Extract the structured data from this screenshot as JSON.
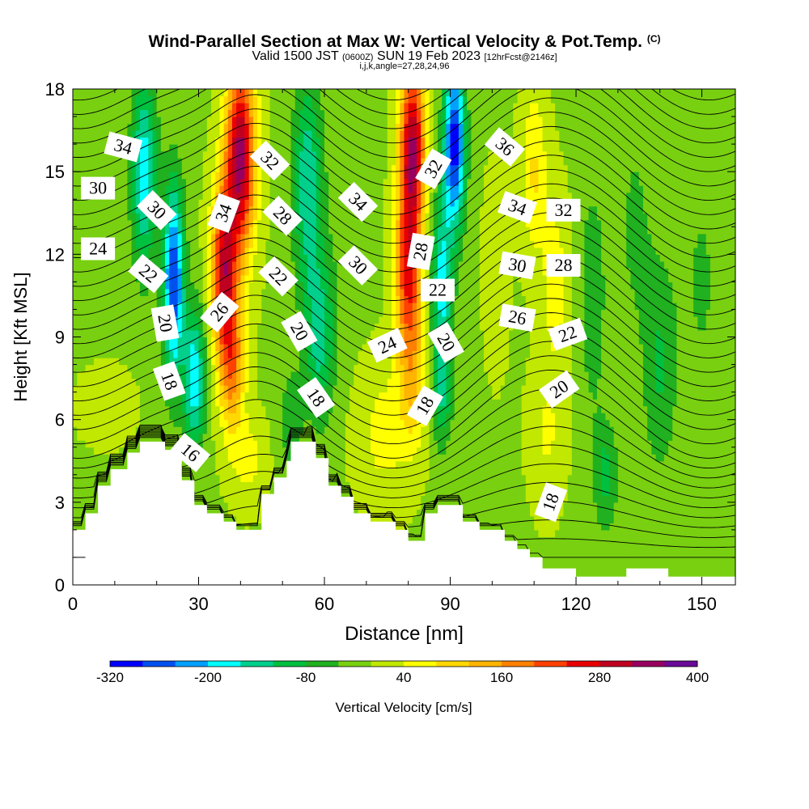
{
  "title": "Wind-Parallel Section at Max W: Vertical Velocity & Pot.Temp.",
  "title_mark": "(C)",
  "subtitle": {
    "part1": "Valid 1500 JST",
    "utc": "(0600Z)",
    "part2": "SUN 19 Feb 2023",
    "fcst": "[12hrFcst@2146z]"
  },
  "subtitle2": "i,j,k,angle=27,28,24,96",
  "chart_data": {
    "type": "heatmap",
    "xlabel": "Distance [nm]",
    "ylabel": "Height [Kft MSL]",
    "xlim": [
      0,
      158
    ],
    "ylim": [
      0,
      18
    ],
    "x_ticks": [
      0,
      30,
      60,
      90,
      120,
      150
    ],
    "y_ticks": [
      0,
      3,
      6,
      9,
      12,
      15,
      18
    ],
    "colorbar": {
      "label": "Vertical Velocity [cm/s]",
      "min": -320,
      "max": 400,
      "tick_labels": [
        -320,
        -200,
        -80,
        40,
        160,
        280,
        400
      ],
      "colors": [
        "#0000ff",
        "#0050f0",
        "#00a0ff",
        "#00ffff",
        "#00d08c",
        "#00c040",
        "#20b020",
        "#78d010",
        "#c0e800",
        "#ffff00",
        "#ffd800",
        "#ffb400",
        "#ff8000",
        "#ff4000",
        "#e80000",
        "#c00020",
        "#980060",
        "#6a0a98"
      ]
    },
    "terrain_kft": [
      {
        "x": 0,
        "h": 2.0
      },
      {
        "x": 3,
        "h": 2.0
      },
      {
        "x": 3,
        "h": 2.6
      },
      {
        "x": 6,
        "h": 2.6
      },
      {
        "x": 6,
        "h": 3.6
      },
      {
        "x": 9,
        "h": 3.6
      },
      {
        "x": 9,
        "h": 4.2
      },
      {
        "x": 13,
        "h": 4.2
      },
      {
        "x": 13,
        "h": 4.8
      },
      {
        "x": 16,
        "h": 4.8
      },
      {
        "x": 16,
        "h": 5.2
      },
      {
        "x": 22,
        "h": 5.2
      },
      {
        "x": 22,
        "h": 4.9
      },
      {
        "x": 26,
        "h": 4.9
      },
      {
        "x": 26,
        "h": 3.8
      },
      {
        "x": 29,
        "h": 3.8
      },
      {
        "x": 29,
        "h": 2.9
      },
      {
        "x": 32,
        "h": 2.9
      },
      {
        "x": 32,
        "h": 2.6
      },
      {
        "x": 36,
        "h": 2.6
      },
      {
        "x": 36,
        "h": 2.3
      },
      {
        "x": 39,
        "h": 2.3
      },
      {
        "x": 39,
        "h": 2.0
      },
      {
        "x": 45,
        "h": 2.0
      },
      {
        "x": 45,
        "h": 3.3
      },
      {
        "x": 48,
        "h": 3.3
      },
      {
        "x": 48,
        "h": 3.9
      },
      {
        "x": 51,
        "h": 3.9
      },
      {
        "x": 51,
        "h": 4.5
      },
      {
        "x": 52,
        "h": 4.5
      },
      {
        "x": 52,
        "h": 5.2
      },
      {
        "x": 58,
        "h": 5.2
      },
      {
        "x": 58,
        "h": 4.6
      },
      {
        "x": 61,
        "h": 4.6
      },
      {
        "x": 61,
        "h": 3.6
      },
      {
        "x": 64,
        "h": 3.6
      },
      {
        "x": 64,
        "h": 3.2
      },
      {
        "x": 67,
        "h": 3.2
      },
      {
        "x": 67,
        "h": 2.6
      },
      {
        "x": 71,
        "h": 2.6
      },
      {
        "x": 71,
        "h": 2.3
      },
      {
        "x": 77,
        "h": 2.3
      },
      {
        "x": 77,
        "h": 2.0
      },
      {
        "x": 80,
        "h": 2.0
      },
      {
        "x": 80,
        "h": 1.6
      },
      {
        "x": 84,
        "h": 1.6
      },
      {
        "x": 84,
        "h": 2.6
      },
      {
        "x": 87,
        "h": 2.6
      },
      {
        "x": 87,
        "h": 2.9
      },
      {
        "x": 93,
        "h": 2.9
      },
      {
        "x": 93,
        "h": 2.3
      },
      {
        "x": 97,
        "h": 2.3
      },
      {
        "x": 97,
        "h": 2.0
      },
      {
        "x": 103,
        "h": 2.0
      },
      {
        "x": 103,
        "h": 1.6
      },
      {
        "x": 106,
        "h": 1.6
      },
      {
        "x": 106,
        "h": 1.3
      },
      {
        "x": 109,
        "h": 1.3
      },
      {
        "x": 109,
        "h": 1.0
      },
      {
        "x": 112,
        "h": 1.0
      },
      {
        "x": 112,
        "h": 0.6
      },
      {
        "x": 120,
        "h": 0.6
      },
      {
        "x": 120,
        "h": 0.3
      },
      {
        "x": 132,
        "h": 0.3
      },
      {
        "x": 132,
        "h": 0.6
      },
      {
        "x": 142,
        "h": 0.6
      },
      {
        "x": 142,
        "h": 0.3
      },
      {
        "x": 158,
        "h": 0.3
      }
    ],
    "velocity_features": [
      {
        "x": 8,
        "h": 6.5,
        "w": 40,
        "sx": 6,
        "sh": 1.2
      },
      {
        "x": 17,
        "h": 15.0,
        "w": -180,
        "sx": 3,
        "sh": 3.5
      },
      {
        "x": 24,
        "h": 11.0,
        "w": -280,
        "sx": 2.5,
        "sh": 3.5
      },
      {
        "x": 29,
        "h": 7.5,
        "w": -190,
        "sx": 2.5,
        "sh": 2.5
      },
      {
        "x": 40,
        "h": 15.5,
        "w": 340,
        "sx": 3.5,
        "sh": 3.5
      },
      {
        "x": 36,
        "h": 11.5,
        "w": 280,
        "sx": 3,
        "sh": 3
      },
      {
        "x": 38,
        "h": 8.0,
        "w": 180,
        "sx": 3,
        "sh": 2.5
      },
      {
        "x": 42,
        "h": 4.5,
        "w": 60,
        "sx": 4,
        "sh": 1.5
      },
      {
        "x": 56,
        "h": 14.5,
        "w": -150,
        "sx": 3.5,
        "sh": 4
      },
      {
        "x": 59,
        "h": 9.0,
        "w": -130,
        "sx": 3.5,
        "sh": 3
      },
      {
        "x": 52,
        "h": 6.0,
        "w": -60,
        "sx": 3,
        "sh": 2
      },
      {
        "x": 65,
        "h": 13.5,
        "w": -20,
        "sx": 4,
        "sh": 4
      },
      {
        "x": 74,
        "h": 5.5,
        "w": 60,
        "sx": 6,
        "sh": 2.5
      },
      {
        "x": 81,
        "h": 16.0,
        "w": 320,
        "sx": 3,
        "sh": 3
      },
      {
        "x": 80,
        "h": 11.5,
        "w": 250,
        "sx": 3,
        "sh": 3
      },
      {
        "x": 81,
        "h": 7.5,
        "w": 110,
        "sx": 3.5,
        "sh": 2.5
      },
      {
        "x": 91,
        "h": 16.0,
        "w": -300,
        "sx": 2.5,
        "sh": 3
      },
      {
        "x": 88,
        "h": 11.0,
        "w": -170,
        "sx": 2.5,
        "sh": 3
      },
      {
        "x": 88,
        "h": 7.0,
        "w": -110,
        "sx": 2.5,
        "sh": 2
      },
      {
        "x": 101,
        "h": 11.5,
        "w": 30,
        "sx": 3,
        "sh": 3.5
      },
      {
        "x": 110,
        "h": 15.0,
        "w": 90,
        "sx": 3,
        "sh": 3
      },
      {
        "x": 115,
        "h": 11.0,
        "w": 70,
        "sx": 3,
        "sh": 3
      },
      {
        "x": 113,
        "h": 5.5,
        "w": 50,
        "sx": 4,
        "sh": 2.5
      },
      {
        "x": 124,
        "h": 10.5,
        "w": -70,
        "sx": 3,
        "sh": 4
      },
      {
        "x": 134,
        "h": 13.0,
        "w": -45,
        "sx": 4,
        "sh": 4
      },
      {
        "x": 140,
        "h": 8.0,
        "w": -80,
        "sx": 4,
        "sh": 4
      },
      {
        "x": 127,
        "h": 4.0,
        "w": -90,
        "sx": 3,
        "sh": 2
      },
      {
        "x": 150,
        "h": 11.0,
        "w": -40,
        "sx": 5,
        "sh": 5
      }
    ],
    "contour_labels": [
      {
        "text": "34",
        "x": 12,
        "h": 15.9,
        "angle": 15
      },
      {
        "text": "30",
        "x": 6,
        "h": 14.4,
        "angle": 0
      },
      {
        "text": "24",
        "x": 6,
        "h": 12.2,
        "angle": 0
      },
      {
        "text": "30",
        "x": 20,
        "h": 13.6,
        "angle": 45
      },
      {
        "text": "22",
        "x": 18,
        "h": 11.3,
        "angle": 40
      },
      {
        "text": "20",
        "x": 22,
        "h": 9.5,
        "angle": 80
      },
      {
        "text": "18",
        "x": 23,
        "h": 7.4,
        "angle": 70
      },
      {
        "text": "16",
        "x": 28,
        "h": 4.8,
        "angle": 40
      },
      {
        "text": "34",
        "x": 36,
        "h": 13.5,
        "angle": -70
      },
      {
        "text": "26",
        "x": 35,
        "h": 9.9,
        "angle": -50
      },
      {
        "text": "32",
        "x": 47,
        "h": 15.4,
        "angle": 45
      },
      {
        "text": "28",
        "x": 50,
        "h": 13.4,
        "angle": 45
      },
      {
        "text": "22",
        "x": 49,
        "h": 11.2,
        "angle": 45
      },
      {
        "text": "20",
        "x": 54,
        "h": 9.2,
        "angle": 60
      },
      {
        "text": "18",
        "x": 58,
        "h": 6.8,
        "angle": 55
      },
      {
        "text": "34",
        "x": 68,
        "h": 13.9,
        "angle": 45
      },
      {
        "text": "30",
        "x": 68,
        "h": 11.6,
        "angle": 45
      },
      {
        "text": "24",
        "x": 75,
        "h": 8.7,
        "angle": -25
      },
      {
        "text": "32",
        "x": 86,
        "h": 15.1,
        "angle": -60
      },
      {
        "text": "28",
        "x": 83,
        "h": 12.1,
        "angle": -80
      },
      {
        "text": "22",
        "x": 87,
        "h": 10.7,
        "angle": 0
      },
      {
        "text": "20",
        "x": 89,
        "h": 8.8,
        "angle": 60
      },
      {
        "text": "18",
        "x": 84,
        "h": 6.5,
        "angle": -60
      },
      {
        "text": "36",
        "x": 103,
        "h": 15.9,
        "angle": 40
      },
      {
        "text": "34",
        "x": 106,
        "h": 13.7,
        "angle": 20
      },
      {
        "text": "32",
        "x": 117,
        "h": 13.6,
        "angle": 0
      },
      {
        "text": "30",
        "x": 106,
        "h": 11.6,
        "angle": 10
      },
      {
        "text": "28",
        "x": 117,
        "h": 11.6,
        "angle": 0
      },
      {
        "text": "26",
        "x": 106,
        "h": 9.7,
        "angle": 10
      },
      {
        "text": "22",
        "x": 118,
        "h": 9.1,
        "angle": -20
      },
      {
        "text": "20",
        "x": 116,
        "h": 7.1,
        "angle": -35
      },
      {
        "text": "18",
        "x": 114,
        "h": 3.0,
        "angle": -70
      }
    ]
  }
}
